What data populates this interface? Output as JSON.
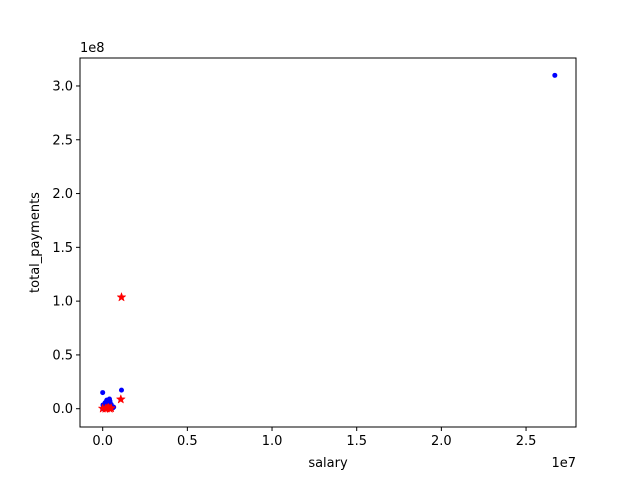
{
  "chart_data": {
    "type": "scatter",
    "title": "",
    "xlabel": "salary",
    "ylabel": "total_payments",
    "x_offset_text": "1e7",
    "y_offset_text": "1e8",
    "xlim": [
      -1340000,
      27950000
    ],
    "ylim": [
      -17000000,
      326000000
    ],
    "x_scale_factor": 10000000,
    "y_scale_factor": 100000000,
    "xticks": [
      0,
      5000000,
      10000000,
      15000000,
      20000000,
      25000000
    ],
    "xtick_labels": [
      "0.0",
      "0.5",
      "1.0",
      "1.5",
      "2.0",
      "2.5"
    ],
    "yticks": [
      0,
      50000000,
      100000000,
      150000000,
      200000000,
      250000000,
      300000000
    ],
    "ytick_labels": [
      "0.0",
      "0.5",
      "1.0",
      "1.5",
      "2.0",
      "2.5",
      "3.0"
    ],
    "grid": false,
    "series": [
      {
        "marker": "dot",
        "color": "#0000ff",
        "points": [
          [
            26700000,
            309900000
          ],
          [
            1110000,
            17300000
          ],
          [
            0,
            15000000
          ],
          [
            0,
            0
          ],
          [
            100000,
            1000000
          ],
          [
            180000,
            2500000
          ],
          [
            230000,
            500000
          ],
          [
            260000,
            1200000
          ],
          [
            280000,
            3800000
          ],
          [
            300000,
            2000000
          ],
          [
            330000,
            4500000
          ],
          [
            360000,
            6000000
          ],
          [
            380000,
            1500000
          ],
          [
            400000,
            9000000
          ],
          [
            410000,
            3000000
          ],
          [
            430000,
            7000000
          ],
          [
            450000,
            500000
          ],
          [
            480000,
            2500000
          ],
          [
            500000,
            4000000
          ],
          [
            520000,
            1000000
          ],
          [
            560000,
            2000000
          ],
          [
            600000,
            800000
          ],
          [
            650000,
            1500000
          ],
          [
            20000,
            3500000
          ],
          [
            60000,
            200000
          ],
          [
            140000,
            5500000
          ],
          [
            240000,
            8000000
          ],
          [
            340000,
            200000
          ]
        ]
      },
      {
        "marker": "star",
        "color": "#ff0000",
        "points": [
          [
            1110000,
            103600000
          ],
          [
            1070000,
            8700000
          ],
          [
            0,
            200000
          ],
          [
            160000,
            0
          ],
          [
            250000,
            300000
          ],
          [
            330000,
            1000000
          ],
          [
            420000,
            0
          ],
          [
            500000,
            500000
          ]
        ]
      }
    ]
  }
}
